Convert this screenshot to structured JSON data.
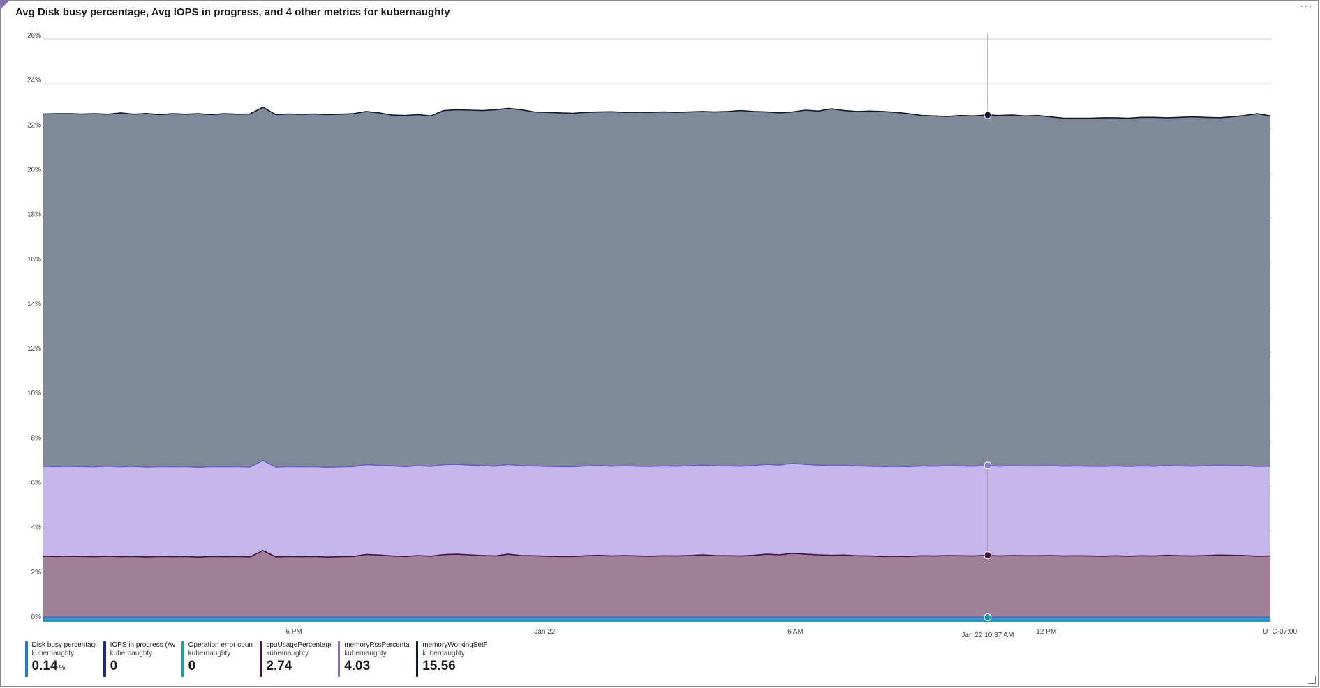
{
  "header": {
    "title": "Avg Disk busy percentage, Avg IOPS in progress, and 4 other metrics for kubernaughty",
    "more_label": "···",
    "corner_icon": "filter-icon"
  },
  "colors": {
    "grid": "#d0d0d0",
    "cursor": "#8a8a8a"
  },
  "chart_data": {
    "type": "area",
    "stacked": true,
    "grid": true,
    "legend_position": "bottom-left",
    "y_ticks": [
      "0%",
      "2%",
      "4%",
      "6%",
      "8%",
      "10%",
      "12%",
      "14%",
      "16%",
      "18%",
      "20%",
      "22%",
      "24%",
      "26%"
    ],
    "ylim": [
      0,
      26
    ],
    "x_ticks": [
      "6 PM",
      "Jan 22",
      "6 AM",
      "12 PM"
    ],
    "x_tick_positions_hours": [
      6,
      12,
      18,
      24
    ],
    "time_range_hours": [
      0,
      29.4
    ],
    "cursor": {
      "label": "Jan 22 10:37 AM",
      "hour": 22.6
    },
    "timezone": "UTC-07:00",
    "sample_count": 96,
    "layers": [
      {
        "name": "Disk busy percentage...",
        "resource": "kubernaughty",
        "color": "#1a7ad4",
        "fill": "#3d8fdc",
        "top": [
          0.14
        ]
      },
      {
        "name": "IOPS in progress (Avg)",
        "resource": "kubernaughty",
        "color": "#162a8a",
        "fill": "#162a8a",
        "top": [
          0.14
        ]
      },
      {
        "name": "Operation error coun...",
        "resource": "kubernaughty",
        "color": "#1aa0a8",
        "fill": "#1aa0a8",
        "top": [
          0.14
        ]
      },
      {
        "name": "cpuUsagePercentage (...",
        "resource": "kubernaughty",
        "color": "#4a1040",
        "fill": "#a08096",
        "top": [
          2.87,
          2.86,
          2.87,
          2.86,
          2.85,
          2.87,
          2.85,
          2.86,
          2.84,
          2.86,
          2.85,
          2.86,
          2.83,
          2.86,
          2.85,
          2.86,
          2.84,
          3.12,
          2.84,
          2.86,
          2.85,
          2.86,
          2.83,
          2.85,
          2.86,
          2.95,
          2.92,
          2.88,
          2.86,
          2.9,
          2.87,
          2.94,
          2.96,
          2.93,
          2.9,
          2.88,
          2.96,
          2.9,
          2.89,
          2.87,
          2.86,
          2.86,
          2.89,
          2.91,
          2.88,
          2.9,
          2.88,
          2.87,
          2.89,
          2.88,
          2.9,
          2.93,
          2.9,
          2.89,
          2.88,
          2.91,
          2.96,
          2.93,
          3.0,
          2.96,
          2.93,
          2.91,
          2.92,
          2.89,
          2.88,
          2.86,
          2.87,
          2.86,
          2.89,
          2.88,
          2.9,
          2.89,
          2.88,
          2.91,
          2.88,
          2.9,
          2.89,
          2.89,
          2.9,
          2.88,
          2.89,
          2.88,
          2.87,
          2.89,
          2.87,
          2.89,
          2.88,
          2.91,
          2.89,
          2.88,
          2.9,
          2.92,
          2.91,
          2.9,
          2.87,
          2.88
        ]
      },
      {
        "name": "memoryRssPercentage ...",
        "resource": "kubernaughty",
        "color": "#6a5acd",
        "fill": "#c4b5ea",
        "top": [
          6.89,
          6.88,
          6.89,
          6.88,
          6.87,
          6.9,
          6.87,
          6.89,
          6.86,
          6.88,
          6.87,
          6.88,
          6.85,
          6.88,
          6.87,
          6.88,
          6.86,
          7.15,
          6.86,
          6.88,
          6.87,
          6.88,
          6.85,
          6.87,
          6.88,
          6.97,
          6.94,
          6.91,
          6.88,
          6.92,
          6.89,
          6.97,
          6.98,
          6.95,
          6.93,
          6.9,
          6.98,
          6.92,
          6.91,
          6.89,
          6.88,
          6.88,
          6.91,
          6.93,
          6.9,
          6.92,
          6.9,
          6.89,
          6.91,
          6.9,
          6.92,
          6.95,
          6.92,
          6.91,
          6.9,
          6.93,
          6.98,
          6.95,
          7.03,
          6.98,
          6.95,
          6.93,
          6.94,
          6.91,
          6.9,
          6.88,
          6.89,
          6.88,
          6.91,
          6.9,
          6.92,
          6.91,
          6.9,
          6.93,
          6.9,
          6.92,
          6.91,
          6.91,
          6.92,
          6.9,
          6.91,
          6.9,
          6.89,
          6.91,
          6.89,
          6.91,
          6.9,
          6.93,
          6.91,
          6.9,
          6.92,
          6.94,
          6.93,
          6.92,
          6.89,
          6.9
        ]
      },
      {
        "name": "memoryWorkingSetPerc...",
        "resource": "kubernaughty",
        "color": "#0f1b33",
        "fill": "#7e8a99",
        "top": [
          22.65,
          22.66,
          22.66,
          22.65,
          22.66,
          22.64,
          22.7,
          22.64,
          22.67,
          22.62,
          22.66,
          22.64,
          22.66,
          22.62,
          22.66,
          22.64,
          22.65,
          22.95,
          22.62,
          22.65,
          22.63,
          22.65,
          22.62,
          22.64,
          22.66,
          22.76,
          22.7,
          22.6,
          22.58,
          22.62,
          22.56,
          22.8,
          22.84,
          22.82,
          22.8,
          22.84,
          22.9,
          22.84,
          22.74,
          22.72,
          22.7,
          22.68,
          22.72,
          22.74,
          22.75,
          22.72,
          22.73,
          22.72,
          22.74,
          22.72,
          22.74,
          22.76,
          22.74,
          22.76,
          22.8,
          22.76,
          22.74,
          22.7,
          22.74,
          22.82,
          22.78,
          22.88,
          22.8,
          22.76,
          22.78,
          22.76,
          22.72,
          22.66,
          22.58,
          22.56,
          22.54,
          22.58,
          22.56,
          22.6,
          22.58,
          22.6,
          22.56,
          22.58,
          22.52,
          22.46,
          22.46,
          22.46,
          22.48,
          22.48,
          22.46,
          22.5,
          22.5,
          22.48,
          22.5,
          22.52,
          22.5,
          22.48,
          22.52,
          22.58,
          22.66,
          22.56
        ]
      }
    ]
  },
  "legend": [
    {
      "name": "Disk busy percentage...",
      "resource": "kubernaughty",
      "value": "0.14",
      "unit": "%",
      "color": "#1a7ad4"
    },
    {
      "name": "IOPS in progress (Avg)",
      "resource": "kubernaughty",
      "value": "0",
      "unit": "",
      "color": "#162a8a"
    },
    {
      "name": "Operation error coun...",
      "resource": "kubernaughty",
      "value": "0",
      "unit": "",
      "color": "#1aa0a8"
    },
    {
      "name": "cpuUsagePercentage (...",
      "resource": "kubernaughty",
      "value": "2.74",
      "unit": "",
      "color": "#4a1040"
    },
    {
      "name": "memoryRssPercentage ...",
      "resource": "kubernaughty",
      "value": "4.03",
      "unit": "",
      "color": "#7a6bd0"
    },
    {
      "name": "memoryWorkingSetPerc...",
      "resource": "kubernaughty",
      "value": "15.56",
      "unit": "",
      "color": "#0f1b33"
    }
  ]
}
